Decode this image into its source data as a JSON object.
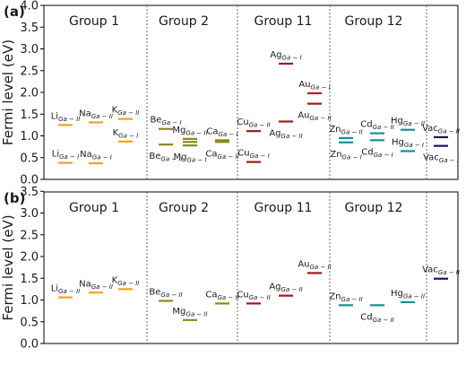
{
  "chart_data": [
    {
      "type": "scatter",
      "panel_label": "(a)",
      "ylabel": "Fermi level (eV)",
      "ylim": [
        0,
        4.0
      ],
      "yticks": [
        "0.0",
        "0.5",
        "1.0",
        "1.5",
        "2.0",
        "2.5",
        "3.0",
        "3.5",
        "4.0"
      ],
      "grid": false,
      "groups": [
        "Group 1",
        "Group 2",
        "Group 11",
        "Group 12"
      ],
      "points": [
        {
          "x": 1,
          "y": 1.25,
          "sym": "Li",
          "site": "Ga − II",
          "color": "#f0a21e",
          "pos": "above"
        },
        {
          "x": 1,
          "y": 0.38,
          "sym": "Li",
          "site": "Ga − I",
          "color": "#f0a21e",
          "pos": "above"
        },
        {
          "x": 2,
          "y": 1.31,
          "sym": "Na",
          "site": "Ga − II",
          "color": "#f0a21e",
          "pos": "above"
        },
        {
          "x": 2,
          "y": 0.37,
          "sym": "Na",
          "site": "Ga − I",
          "color": "#f0a21e",
          "pos": "above"
        },
        {
          "x": 3,
          "y": 1.39,
          "sym": "K",
          "site": "Ga − II",
          "color": "#f0a21e",
          "pos": "above"
        },
        {
          "x": 3,
          "y": 0.87,
          "sym": "K",
          "site": "Ga − I",
          "color": "#f0a21e",
          "pos": "above"
        },
        {
          "x": 4,
          "y": 1.16,
          "sym": "Be",
          "site": "Ga − I",
          "color": "#8c8818",
          "pos": "above"
        },
        {
          "x": 4,
          "y": 0.8,
          "sym": "Be",
          "site": "Ga − II",
          "color": "#8c8818",
          "pos": "below"
        },
        {
          "x": 5,
          "y": 0.93,
          "sym": "Mg",
          "site": "Ga − II",
          "color": "#8c8818",
          "pos": "above"
        },
        {
          "x": 5,
          "y": 0.86,
          "sym": "Mg",
          "site": "Ga − II",
          "color": "#8c8818",
          "pos": "none"
        },
        {
          "x": 5,
          "y": 0.78,
          "sym": "Mg",
          "site": "Ga − I",
          "color": "#8c8818",
          "pos": "below"
        },
        {
          "x": 6,
          "y": 0.9,
          "sym": "Ca",
          "site": "Ga − I",
          "color": "#8c8818",
          "pos": "above"
        },
        {
          "x": 6,
          "y": 0.86,
          "sym": "Ca",
          "site": "Ga − II",
          "color": "#8c8818",
          "pos": "below"
        },
        {
          "x": 7,
          "y": 1.11,
          "sym": "Cu",
          "site": "Ga − II",
          "color": "#a01818",
          "pos": "above"
        },
        {
          "x": 7,
          "y": 0.4,
          "sym": "Cu",
          "site": "Ga − I",
          "color": "#a01818",
          "pos": "above"
        },
        {
          "x": 8,
          "y": 2.66,
          "sym": "Ag",
          "site": "Ga − I",
          "color": "#a01818",
          "pos": "above"
        },
        {
          "x": 8,
          "y": 1.33,
          "sym": "Ag",
          "site": "Ga − II",
          "color": "#a01818",
          "pos": "below"
        },
        {
          "x": 9,
          "y": 1.98,
          "sym": "Au",
          "site": "Ga − I",
          "color": "#c8141e",
          "pos": "above"
        },
        {
          "x": 9,
          "y": 1.74,
          "sym": "Au",
          "site": "Ga − II",
          "color": "#a01818",
          "pos": "below"
        },
        {
          "x": 10,
          "y": 0.95,
          "sym": "Zn",
          "site": "Ga − II",
          "color": "#188f96",
          "pos": "above"
        },
        {
          "x": 10,
          "y": 0.85,
          "sym": "Zn",
          "site": "Ga − I",
          "color": "#188f96",
          "pos": "below"
        },
        {
          "x": 11,
          "y": 1.06,
          "sym": "Cd",
          "site": "Ga − II",
          "color": "#188f96",
          "pos": "above"
        },
        {
          "x": 11,
          "y": 0.9,
          "sym": "Cd",
          "site": "Ga − I",
          "color": "#188f96",
          "pos": "below"
        },
        {
          "x": 12,
          "y": 1.14,
          "sym": "Hg",
          "site": "Ga − II",
          "color": "#188f96",
          "pos": "above"
        },
        {
          "x": 12,
          "y": 0.65,
          "sym": "Hg",
          "site": "Ga − I",
          "color": "#188f96",
          "pos": "above"
        },
        {
          "x": 13,
          "y": 0.97,
          "sym": "Vac",
          "site": "Ga − II",
          "color": "#14146e",
          "pos": "above"
        },
        {
          "x": 13,
          "y": 0.77,
          "sym": "Vac",
          "site": "Ga − I",
          "color": "#14146e",
          "pos": "below"
        }
      ]
    },
    {
      "type": "scatter",
      "panel_label": "(b)",
      "ylabel": "Fermi level (eV)",
      "ylim": [
        0,
        4.0
      ],
      "yticks": [
        "0.0",
        "0.5",
        "1.0",
        "1.5",
        "2.0",
        "2.5",
        "3.0",
        "3.5"
      ],
      "grid": false,
      "groups": [
        "Group 1",
        "Group 2",
        "Group 11",
        "Group 12"
      ],
      "points": [
        {
          "x": 1,
          "y": 1.06,
          "sym": "Li",
          "site": "Ga − II",
          "color": "#f0a21e",
          "pos": "above"
        },
        {
          "x": 2,
          "y": 1.17,
          "sym": "Na",
          "site": "Ga − II",
          "color": "#f0a21e",
          "pos": "above"
        },
        {
          "x": 3,
          "y": 1.25,
          "sym": "K",
          "site": "Ga − II",
          "color": "#f0a21e",
          "pos": "above"
        },
        {
          "x": 4,
          "y": 0.98,
          "sym": "Be",
          "site": "Ga − II",
          "color": "#8c8818",
          "pos": "above"
        },
        {
          "x": 5,
          "y": 0.54,
          "sym": "Mg",
          "site": "Ga − II",
          "color": "#8c8818",
          "pos": "above"
        },
        {
          "x": 6,
          "y": 0.92,
          "sym": "Ca",
          "site": "Ga − II",
          "color": "#8c8818",
          "pos": "above"
        },
        {
          "x": 7,
          "y": 0.92,
          "sym": "Cu",
          "site": "Ga − II",
          "color": "#a01818",
          "pos": "above"
        },
        {
          "x": 8,
          "y": 1.1,
          "sym": "Ag",
          "site": "Ga − II",
          "color": "#a01818",
          "pos": "above"
        },
        {
          "x": 9,
          "y": 1.62,
          "sym": "Au",
          "site": "Ga − II",
          "color": "#a01818",
          "pos": "above"
        },
        {
          "x": 10,
          "y": 0.88,
          "sym": "Zn",
          "site": "Ga − II",
          "color": "#188f96",
          "pos": "above"
        },
        {
          "x": 11,
          "y": 0.88,
          "sym": "Cd",
          "site": "Ga − II",
          "color": "#188f96",
          "pos": "below"
        },
        {
          "x": 12,
          "y": 0.95,
          "sym": "Hg",
          "site": "Ga − II",
          "color": "#188f96",
          "pos": "above"
        },
        {
          "x": 13,
          "y": 1.49,
          "sym": "Vac",
          "site": "Ga − II",
          "color": "#14146e",
          "pos": "above"
        }
      ]
    }
  ]
}
